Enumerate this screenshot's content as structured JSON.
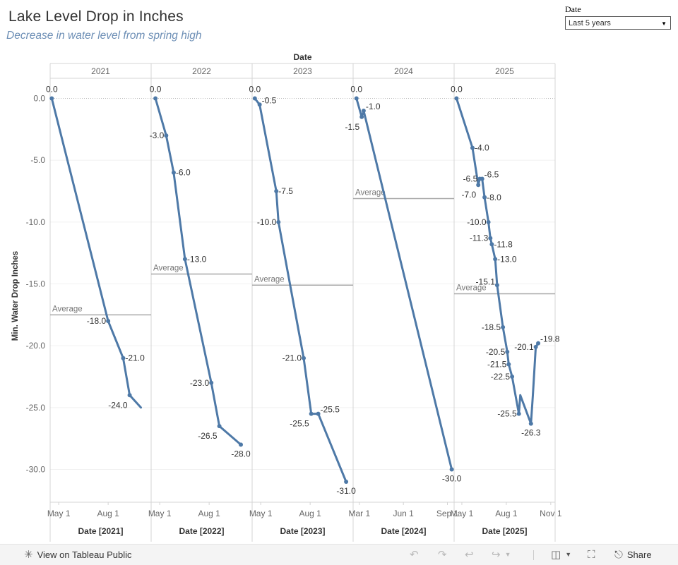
{
  "header": {
    "title": "Lake Level Drop in Inches",
    "subtitle": "Decrease in water level from spring high"
  },
  "filter": {
    "label": "Date",
    "value": "Last 5 years"
  },
  "toolbar": {
    "view_label": "View on Tableau Public",
    "share_label": "Share"
  },
  "chart_data": {
    "type": "line",
    "column_header_title": "Date",
    "ylabel": "Min. Water Drop Inches",
    "ylim": [
      -32.5,
      2.5
    ],
    "yticks": [
      0,
      -5,
      -10,
      -15,
      -20,
      -25,
      -30
    ],
    "ytick_labels": [
      "0.0",
      "-5.0",
      "-10.0",
      "-15.0",
      "-20.0",
      "-25.0",
      "-30.0"
    ],
    "zero_reference_line": true,
    "reference_line_label": "Average",
    "series_color": "#4e79a7",
    "panels": [
      {
        "year": "2021",
        "axis_title": "Date [2021]",
        "xlim": [
          "2021-04-15",
          "2021-10-20"
        ],
        "xticks": [
          {
            "date": "2021-05-01",
            "label": "May 1"
          },
          {
            "date": "2021-08-01",
            "label": "Aug 1"
          }
        ],
        "average": -17.5,
        "points": [
          {
            "date": "2021-04-18",
            "value": 0.0,
            "label": "0.0",
            "labelPos": "above"
          },
          {
            "date": "2021-08-01",
            "value": -18.0,
            "label": "-18.0",
            "labelPos": "left"
          },
          {
            "date": "2021-08-29",
            "value": -21.0,
            "label": "-21.0",
            "labelPos": "right"
          },
          {
            "date": "2021-09-10",
            "value": -24.0,
            "label": "-24.0",
            "labelPos": "below-left"
          },
          {
            "date": "2021-10-01",
            "value": -25.0,
            "label": null,
            "labelPos": null,
            "marker": false
          }
        ]
      },
      {
        "year": "2022",
        "axis_title": "Date [2022]",
        "xlim": [
          "2022-04-15",
          "2022-10-20"
        ],
        "xticks": [
          {
            "date": "2022-05-01",
            "label": "May 1"
          },
          {
            "date": "2022-08-01",
            "label": "Aug 1"
          }
        ],
        "average": -14.2,
        "points": [
          {
            "date": "2022-04-23",
            "value": 0.0,
            "label": "0.0",
            "labelPos": "above"
          },
          {
            "date": "2022-05-13",
            "value": -3.0,
            "label": "-3.0",
            "labelPos": "left"
          },
          {
            "date": "2022-05-27",
            "value": -6.0,
            "label": "-6.0",
            "labelPos": "right"
          },
          {
            "date": "2022-06-17",
            "value": -13.0,
            "label": "-13.0",
            "labelPos": "right"
          },
          {
            "date": "2022-08-05",
            "value": -23.0,
            "label": "-23.0",
            "labelPos": "left"
          },
          {
            "date": "2022-08-20",
            "value": -26.5,
            "label": "-26.5",
            "labelPos": "below-left"
          },
          {
            "date": "2022-09-29",
            "value": -28.0,
            "label": "-28.0",
            "labelPos": "below"
          }
        ]
      },
      {
        "year": "2023",
        "axis_title": "Date [2023]",
        "xlim": [
          "2023-04-15",
          "2023-10-20"
        ],
        "xticks": [
          {
            "date": "2023-05-01",
            "label": "May 1"
          },
          {
            "date": "2023-08-01",
            "label": "Aug 1"
          }
        ],
        "average": -15.1,
        "points": [
          {
            "date": "2023-04-20",
            "value": 0.0,
            "label": "0.0",
            "labelPos": "above"
          },
          {
            "date": "2023-04-29",
            "value": -0.5,
            "label": "-0.5",
            "labelPos": "right-up"
          },
          {
            "date": "2023-05-30",
            "value": -7.5,
            "label": "-7.5",
            "labelPos": "right"
          },
          {
            "date": "2023-06-03",
            "value": -10.0,
            "label": "-10.0",
            "labelPos": "left"
          },
          {
            "date": "2023-07-20",
            "value": -21.0,
            "label": "-21.0",
            "labelPos": "left"
          },
          {
            "date": "2023-08-03",
            "value": -25.5,
            "label": "-25.5",
            "labelPos": "below-left"
          },
          {
            "date": "2023-08-16",
            "value": -25.5,
            "label": "-25.5",
            "labelPos": "right-up"
          },
          {
            "date": "2023-10-07",
            "value": -31.0,
            "label": "-31.0",
            "labelPos": "below"
          }
        ]
      },
      {
        "year": "2024",
        "axis_title": "Date [2024]",
        "xlim": [
          "2024-02-17",
          "2024-09-15"
        ],
        "xticks": [
          {
            "date": "2024-03-01",
            "label": "Mar 1"
          },
          {
            "date": "2024-06-01",
            "label": "Jun 1"
          },
          {
            "date": "2024-09-01",
            "label": "Sep 1"
          }
        ],
        "average": -8.1,
        "points": [
          {
            "date": "2024-02-24",
            "value": 0.0,
            "label": "0.0",
            "labelPos": "above"
          },
          {
            "date": "2024-03-06",
            "value": -1.5,
            "label": "-1.5",
            "labelPos": "below-left"
          },
          {
            "date": "2024-03-10",
            "value": -1.0,
            "label": "-1.0",
            "labelPos": "right-up"
          },
          {
            "date": "2024-09-10",
            "value": -30.0,
            "label": "-30.0",
            "labelPos": "below"
          }
        ]
      },
      {
        "year": "2025",
        "axis_title": "Date [2025]",
        "xlim": [
          "2025-04-15",
          "2025-11-10"
        ],
        "xticks": [
          {
            "date": "2025-05-01",
            "label": "May 1"
          },
          {
            "date": "2025-08-01",
            "label": "Aug 1"
          },
          {
            "date": "2025-11-01",
            "label": "Nov 1"
          }
        ],
        "average": -15.8,
        "points": [
          {
            "date": "2025-04-20",
            "value": 0.0,
            "label": "0.0",
            "labelPos": "above"
          },
          {
            "date": "2025-05-23",
            "value": -4.0,
            "label": "-4.0",
            "labelPos": "right"
          },
          {
            "date": "2025-06-04",
            "value": -7.0,
            "label": "-7.0",
            "labelPos": "below-left"
          },
          {
            "date": "2025-06-07",
            "value": -6.5,
            "label": "-6.5",
            "labelPos": "left"
          },
          {
            "date": "2025-06-12",
            "value": -6.5,
            "label": "-6.5",
            "labelPos": "right-up"
          },
          {
            "date": "2025-06-17",
            "value": -8.0,
            "label": "-8.0",
            "labelPos": "right"
          },
          {
            "date": "2025-06-25",
            "value": -10.0,
            "label": "-10.0",
            "labelPos": "left"
          },
          {
            "date": "2025-06-29",
            "value": -11.3,
            "label": "-11.3",
            "labelPos": "left"
          },
          {
            "date": "2025-07-02",
            "value": -11.8,
            "label": "-11.8",
            "labelPos": "right"
          },
          {
            "date": "2025-07-09",
            "value": -13.0,
            "label": "-13.0",
            "labelPos": "right"
          },
          {
            "date": "2025-07-13",
            "value": -15.1,
            "label": "-15.1",
            "labelPos": "left-up"
          },
          {
            "date": "2025-07-25",
            "value": -18.5,
            "label": "-18.5",
            "labelPos": "left"
          },
          {
            "date": "2025-08-03",
            "value": -20.5,
            "label": "-20.5",
            "labelPos": "left"
          },
          {
            "date": "2025-08-06",
            "value": -21.5,
            "label": "-21.5",
            "labelPos": "left"
          },
          {
            "date": "2025-08-13",
            "value": -22.5,
            "label": "-22.5",
            "labelPos": "left"
          },
          {
            "date": "2025-08-27",
            "value": -25.5,
            "label": "-25.5",
            "labelPos": "left"
          },
          {
            "date": "2025-08-30",
            "value": -24.0,
            "label": null,
            "labelPos": null,
            "marker": false
          },
          {
            "date": "2025-09-21",
            "value": -26.3,
            "label": "-26.3",
            "labelPos": "below"
          },
          {
            "date": "2025-09-25",
            "value": -24.0,
            "label": null,
            "labelPos": null,
            "marker": false
          },
          {
            "date": "2025-10-01",
            "value": -20.1,
            "label": "-20.1",
            "labelPos": "left"
          },
          {
            "date": "2025-10-06",
            "value": -19.8,
            "label": "-19.8",
            "labelPos": "right-up"
          }
        ]
      }
    ]
  }
}
